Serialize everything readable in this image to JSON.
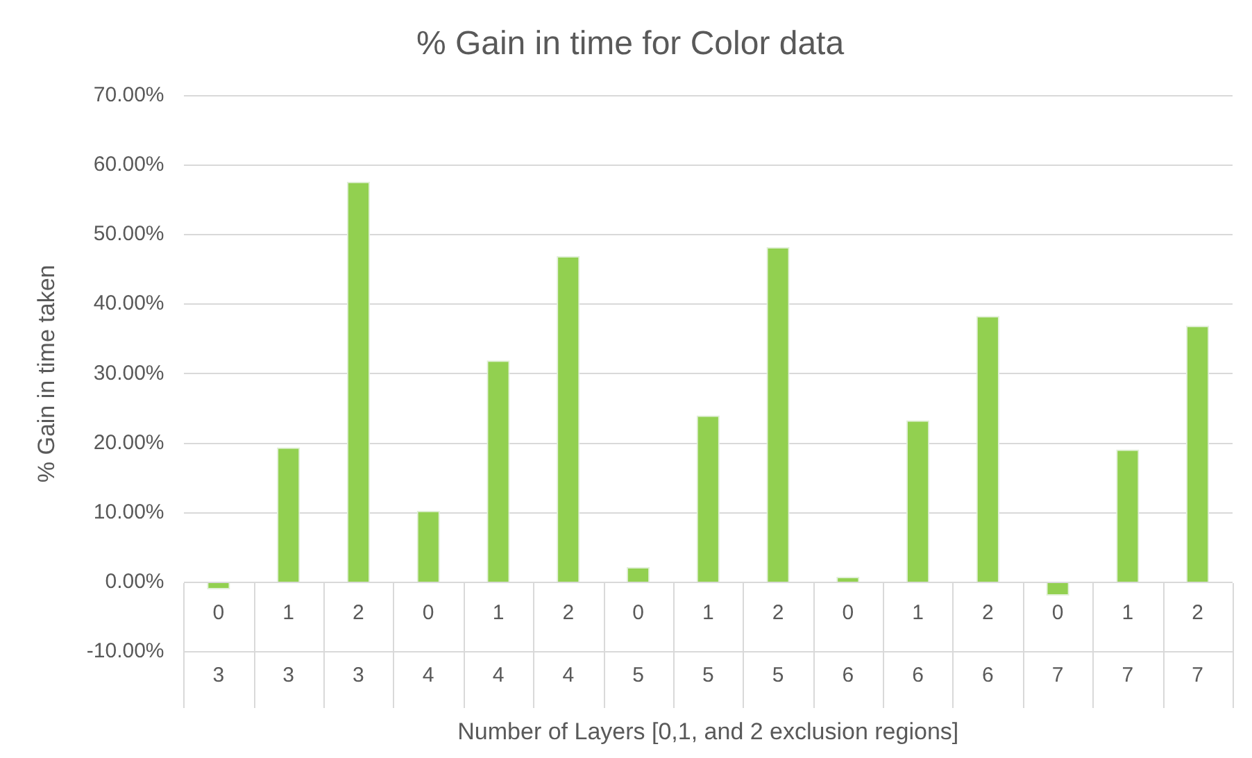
{
  "chart_data": {
    "type": "bar",
    "title": "% Gain in time for Color data",
    "xlabel": "Number of Layers [0,1, and 2 exclusion regions]",
    "ylabel": "% Gain in time taken",
    "categories": [
      [
        "0",
        "3"
      ],
      [
        "1",
        "3"
      ],
      [
        "2",
        "3"
      ],
      [
        "0",
        "4"
      ],
      [
        "1",
        "4"
      ],
      [
        "2",
        "4"
      ],
      [
        "0",
        "5"
      ],
      [
        "1",
        "5"
      ],
      [
        "2",
        "5"
      ],
      [
        "0",
        "6"
      ],
      [
        "1",
        "6"
      ],
      [
        "2",
        "6"
      ],
      [
        "0",
        "7"
      ],
      [
        "1",
        "7"
      ],
      [
        "2",
        "7"
      ]
    ],
    "values": [
      -1.0,
      19.4,
      57.6,
      10.3,
      31.9,
      46.9,
      2.2,
      24.0,
      48.2,
      0.8,
      23.3,
      38.3,
      -1.9,
      19.1,
      36.9
    ],
    "color": "#92d050",
    "ylim": [
      -10,
      70
    ],
    "yticks": [
      {
        "value": -10,
        "label": "-10.00%"
      },
      {
        "value": 0,
        "label": "0.00%"
      },
      {
        "value": 10,
        "label": "10.00%"
      },
      {
        "value": 20,
        "label": "20.00%"
      },
      {
        "value": 30,
        "label": "30.00%"
      },
      {
        "value": 40,
        "label": "40.00%"
      },
      {
        "value": 50,
        "label": "50.00%"
      },
      {
        "value": 60,
        "label": "60.00%"
      },
      {
        "value": 70,
        "label": "70.00%"
      }
    ],
    "grid": "y",
    "legend": false
  }
}
